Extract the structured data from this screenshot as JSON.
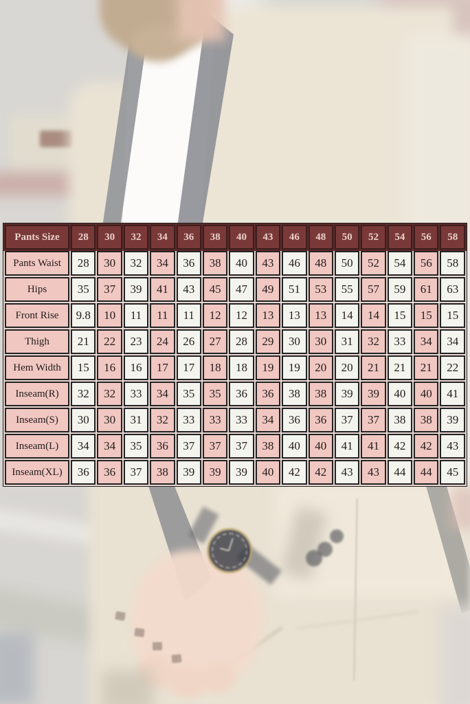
{
  "chart_data": {
    "type": "table",
    "title": "Pants Size",
    "columns": [
      "Pants Size",
      "28",
      "30",
      "32",
      "34",
      "36",
      "38",
      "40",
      "43",
      "46",
      "48",
      "50",
      "52",
      "54",
      "56",
      "58"
    ],
    "rows": [
      {
        "label": "Pants Waist",
        "values": [
          "28",
          "30",
          "32",
          "34",
          "36",
          "38",
          "40",
          "43",
          "46",
          "48",
          "50",
          "52",
          "54",
          "56",
          "58"
        ]
      },
      {
        "label": "Hips",
        "values": [
          "35",
          "37",
          "39",
          "41",
          "43",
          "45",
          "47",
          "49",
          "51",
          "53",
          "55",
          "57",
          "59",
          "61",
          "63"
        ]
      },
      {
        "label": "Front Rise",
        "values": [
          "9.8",
          "10",
          "11",
          "11",
          "11",
          "12",
          "12",
          "13",
          "13",
          "13",
          "14",
          "14",
          "15",
          "15",
          "15"
        ]
      },
      {
        "label": "Thigh",
        "values": [
          "21",
          "22",
          "23",
          "24",
          "26",
          "27",
          "28",
          "29",
          "30",
          "30",
          "31",
          "32",
          "33",
          "34",
          "34"
        ]
      },
      {
        "label": "Hem Width",
        "values": [
          "15",
          "16",
          "16",
          "17",
          "17",
          "18",
          "18",
          "19",
          "19",
          "20",
          "20",
          "21",
          "21",
          "21",
          "22"
        ]
      },
      {
        "label": "Inseam(R)",
        "values": [
          "32",
          "32",
          "33",
          "34",
          "35",
          "35",
          "36",
          "36",
          "38",
          "38",
          "39",
          "39",
          "40",
          "40",
          "41"
        ]
      },
      {
        "label": "Inseam(S)",
        "values": [
          "30",
          "30",
          "31",
          "32",
          "33",
          "33",
          "33",
          "34",
          "36",
          "36",
          "37",
          "37",
          "38",
          "38",
          "39"
        ]
      },
      {
        "label": "Inseam(L)",
        "values": [
          "34",
          "34",
          "35",
          "36",
          "37",
          "37",
          "37",
          "38",
          "40",
          "40",
          "41",
          "41",
          "42",
          "42",
          "43"
        ]
      },
      {
        "label": "Inseam(XL)",
        "values": [
          "36",
          "36",
          "37",
          "38",
          "39",
          "39",
          "39",
          "40",
          "42",
          "42",
          "43",
          "43",
          "44",
          "44",
          "45"
        ]
      }
    ]
  },
  "colors": {
    "header_bg": "#7a3939",
    "header_text": "#eacfc8",
    "header_gap": "#5f2a2a",
    "pink_cell": "#f1c7c2",
    "white_cell": "#f4f4ef",
    "cell_text": "#221c1a",
    "grid_border": "#232323",
    "body_gap": "#e7d6d1"
  }
}
